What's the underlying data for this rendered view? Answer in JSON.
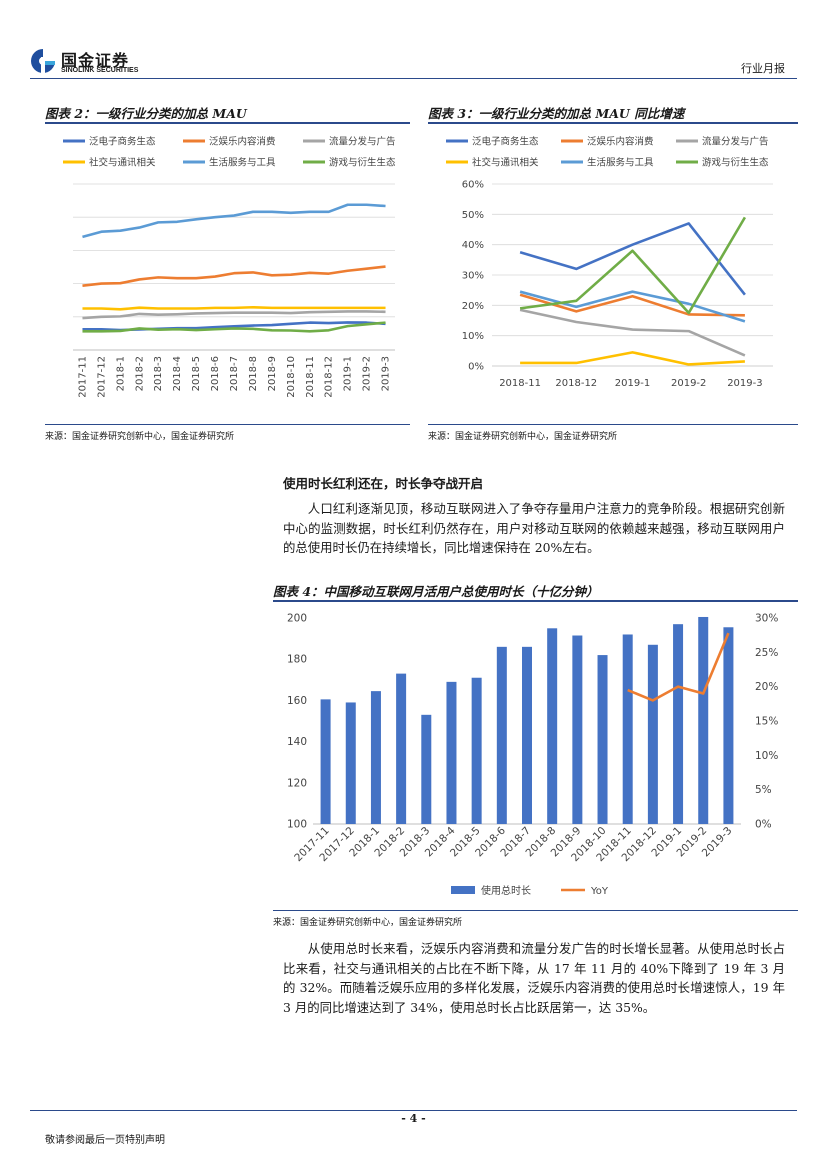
{
  "header": {
    "logo_cn": "国金证券",
    "logo_en": "SINOLINK SECURITIES",
    "doc_type": "行业月报"
  },
  "chart2": {
    "title": "图表 2：一级行业分类的加总 MAU",
    "source": "来源：国金证券研究创新中心，国金证券研究所"
  },
  "chart3": {
    "title": "图表 3：一级行业分类的加总 MAU 同比增速",
    "source": "来源：国金证券研究创新中心，国金证券研究所"
  },
  "section_heading": "使用时长红利还在，时长争夺战开启",
  "para1": "人口红利逐渐见顶，移动互联网进入了争夺存量用户注意力的竞争阶段。根据研究创新中心的监测数据，时长红利仍然存在，用户对移动互联网的依赖越来越强，移动互联网用户的总使用时长仍在持续增长，同比增速保持在 20%左右。",
  "chart4": {
    "title": "图表 4：中国移动互联网月活用户总使用时长（十亿分钟）",
    "source": "来源：国金证券研究创新中心，国金证券研究所"
  },
  "para2": "从使用总时长来看，泛娱乐内容消费和流量分发广告的时长增长显著。从使用总时长占比来看，社交与通讯相关的占比在不断下降，从 17 年 11 月的 40%下降到了 19 年 3 月的 32%。而随着泛娱乐应用的多样化发展，泛娱乐内容消费的使用总时长增速惊人，19 年 3 月的同比增速达到了 34%，使用总时长占比跃居第一，达 35%。",
  "footer": {
    "page_number": "- 4 -",
    "disclaimer": "敬请参阅最后一页特别声明"
  },
  "colors": {
    "rule_blue": "#2b4a8b",
    "s_ecommerce": "#4472c4",
    "s_entertainment": "#ed7d31",
    "s_traffic": "#a5a5a5",
    "s_social": "#ffc000",
    "s_life": "#5b9bd5",
    "s_game": "#70ad47"
  },
  "chart_data": [
    {
      "id": "chart2",
      "type": "line",
      "title": "图表 2：一级行业分类的加总 MAU",
      "x": [
        "2017-11",
        "2017-12",
        "2018-1",
        "2018-2",
        "2018-3",
        "2018-4",
        "2018-5",
        "2018-6",
        "2018-7",
        "2018-8",
        "2018-9",
        "2018-10",
        "2018-11",
        "2018-12",
        "2019-1",
        "2019-2",
        "2019-3"
      ],
      "y_axis_labels_shown": false,
      "legend_position": "top",
      "gridlines": true,
      "series": [
        {
          "name": "泛电子商务生态",
          "color": "#4472c4",
          "values": [
            10,
            10,
            9.6,
            9.9,
            10.2,
            10.5,
            10.5,
            11,
            11.4,
            11.8,
            12,
            12.6,
            13.2,
            13,
            13.3,
            13.2,
            12.6
          ]
        },
        {
          "name": "泛娱乐内容消费",
          "color": "#ed7d31",
          "values": [
            31,
            32,
            32.2,
            34,
            35,
            34.6,
            34.6,
            35.4,
            37,
            37.4,
            36,
            36.3,
            37.2,
            36.8,
            38.2,
            39.2,
            40.2
          ]
        },
        {
          "name": "流量分发与广告",
          "color": "#a5a5a5",
          "values": [
            15.4,
            16,
            16.2,
            17.4,
            17,
            17.2,
            17.6,
            17.8,
            18,
            18,
            18,
            17.8,
            18.2,
            18.4,
            18.6,
            18.6,
            18.4
          ]
        },
        {
          "name": "社交与通讯相关",
          "color": "#ffc000",
          "values": [
            20,
            20,
            19.6,
            20.4,
            20,
            20,
            20,
            20.3,
            20.3,
            20.6,
            20.3,
            20.3,
            20.3,
            20.3,
            20.3,
            20.3,
            20.3
          ]
        },
        {
          "name": "生活服务与工具",
          "color": "#5b9bd5",
          "values": [
            54.5,
            57,
            57.5,
            59,
            61.5,
            61.8,
            63,
            64,
            64.8,
            66.6,
            66.6,
            66.1,
            66.6,
            66.6,
            70,
            70,
            69.4
          ]
        },
        {
          "name": "游戏与衍生生态",
          "color": "#70ad47",
          "values": [
            9,
            9,
            9.2,
            10.4,
            9.8,
            10,
            9.6,
            10,
            10.4,
            10.2,
            9.5,
            9.4,
            9,
            9.5,
            11.5,
            12.4,
            13.2
          ]
        }
      ]
    },
    {
      "id": "chart3",
      "type": "line",
      "title": "图表 3：一级行业分类的加总 MAU 同比增速",
      "x": [
        "2018-11",
        "2018-12",
        "2019-1",
        "2019-2",
        "2019-3"
      ],
      "ylim": [
        0,
        0.6
      ],
      "y_ticks": [
        "0%",
        "10%",
        "20%",
        "30%",
        "40%",
        "50%",
        "60%"
      ],
      "legend_position": "top",
      "gridlines": true,
      "series": [
        {
          "name": "泛电子商务生态",
          "color": "#4472c4",
          "values": [
            0.375,
            0.32,
            0.4,
            0.47,
            0.235
          ]
        },
        {
          "name": "泛娱乐内容消费",
          "color": "#ed7d31",
          "values": [
            0.235,
            0.18,
            0.23,
            0.17,
            0.167
          ]
        },
        {
          "name": "流量分发与广告",
          "color": "#a5a5a5",
          "values": [
            0.185,
            0.145,
            0.12,
            0.115,
            0.035
          ]
        },
        {
          "name": "社交与通讯相关",
          "color": "#ffc000",
          "values": [
            0.01,
            0.01,
            0.045,
            0.005,
            0.015
          ]
        },
        {
          "name": "生活服务与工具",
          "color": "#5b9bd5",
          "values": [
            0.245,
            0.195,
            0.245,
            0.205,
            0.147
          ]
        },
        {
          "name": "游戏与衍生生态",
          "color": "#70ad47",
          "values": [
            0.19,
            0.215,
            0.38,
            0.175,
            0.49
          ]
        }
      ]
    },
    {
      "id": "chart4",
      "type": "bar",
      "title": "图表 4：中国移动互联网月活用户总使用时长（十亿分钟）",
      "categories": [
        "2017-11",
        "2017-12",
        "2018-1",
        "2018-2",
        "2018-3",
        "2018-4",
        "2018-5",
        "2018-6",
        "2018-7",
        "2018-8",
        "2018-9",
        "2018-10",
        "2018-11",
        "2018-12",
        "2019-1",
        "2019-2",
        "2019-3"
      ],
      "ylim": [
        100,
        200
      ],
      "y_ticks": [
        "100",
        "120",
        "140",
        "160",
        "180",
        "200"
      ],
      "y2lim": [
        0,
        0.3
      ],
      "y2_ticks": [
        "0%",
        "5%",
        "10%",
        "15%",
        "20%",
        "25%",
        "30%"
      ],
      "legend_position": "bottom",
      "gridlines": false,
      "series": [
        {
          "name": "使用总时长",
          "color": "#4472c4",
          "kind": "bar",
          "axis": "left",
          "values": [
            160.5,
            159,
            164.5,
            173,
            153,
            169,
            171,
            186,
            186,
            195,
            191.5,
            182,
            192,
            187,
            197,
            200.5,
            195.5
          ]
        },
        {
          "name": "YoY",
          "color": "#ed7d31",
          "kind": "line",
          "axis": "right",
          "values": [
            null,
            null,
            null,
            null,
            null,
            null,
            null,
            null,
            null,
            null,
            null,
            null,
            0.195,
            0.18,
            0.2,
            0.19,
            0.278
          ]
        }
      ]
    }
  ]
}
